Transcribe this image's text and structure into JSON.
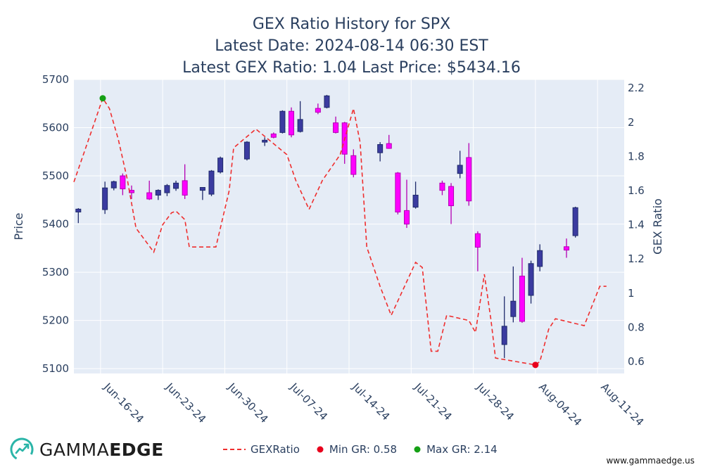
{
  "title": [
    "GEX Ratio History for SPX",
    "Latest Date: 2024-08-14 06:30 EST",
    "Latest GEX Ratio: 1.04 Last Price: $5434.16"
  ],
  "brand": {
    "name_light": "GAMMA",
    "name_bold": "EDGE",
    "url": "www.gammaedge.us"
  },
  "colors": {
    "plot_bg": "#e5ecf6",
    "grid": "#ffffff",
    "up": "#3b3ba0",
    "down": "#ff00ff",
    "line": "#ef2e2e",
    "min_marker": "#e8001c",
    "max_marker": "#15a015",
    "axis_text": "#2a3f5f"
  },
  "legend": {
    "line_label": "GEXRatio",
    "min_label": "Min GR: 0.58",
    "max_label": "Max GR: 2.14"
  },
  "chart_data": {
    "type": "candlestick+line",
    "title": "GEX Ratio History for SPX",
    "y_left": {
      "label": "Price",
      "range": [
        5090,
        5700
      ],
      "ticks": [
        5100,
        5200,
        5300,
        5400,
        5500,
        5600,
        5700
      ]
    },
    "y_right": {
      "label": "GEX Ratio",
      "range": [
        0.53,
        2.25
      ],
      "ticks": [
        "0.6",
        "0.8",
        "1",
        "1.2",
        "1.4",
        "1.6",
        "1.8",
        "2",
        "2.2"
      ]
    },
    "x_axis": {
      "range": [
        "2024-06-13",
        "2024-08-14"
      ],
      "ticks": [
        "2024-06-16",
        "2024-06-23",
        "2024-06-30",
        "2024-07-07",
        "2024-07-14",
        "2024-07-21",
        "2024-07-28",
        "2024-08-04",
        "2024-08-11"
      ],
      "tick_labels": [
        "Jun-16-24",
        "Jun-23-24",
        "Jun-30-24",
        "Jul-07-24",
        "Jul-14-24",
        "Jul-21-24",
        "Jul-28-24",
        "Aug-04-24",
        "Aug-11-24"
      ]
    },
    "grid": true,
    "legend_position": "bottom",
    "candles": [
      {
        "t": "2024-06-13 12:00",
        "o": 5425,
        "h": 5433,
        "l": 5402,
        "c": 5431
      },
      {
        "t": "2024-06-16 12:00",
        "o": 5430,
        "h": 5488,
        "l": 5421,
        "c": 5475
      },
      {
        "t": "2024-06-17 12:00",
        "o": 5475,
        "h": 5490,
        "l": 5470,
        "c": 5488
      },
      {
        "t": "2024-06-18 12:00",
        "o": 5500,
        "h": 5505,
        "l": 5460,
        "c": 5473
      },
      {
        "t": "2024-06-19 12:00",
        "o": 5470,
        "h": 5480,
        "l": 5452,
        "c": 5465
      },
      {
        "t": "2024-06-21 12:00",
        "o": 5465,
        "h": 5490,
        "l": 5450,
        "c": 5452
      },
      {
        "t": "2024-06-22 12:00",
        "o": 5460,
        "h": 5472,
        "l": 5450,
        "c": 5470
      },
      {
        "t": "2024-06-23 12:00",
        "o": 5465,
        "h": 5483,
        "l": 5458,
        "c": 5480
      },
      {
        "t": "2024-06-24 12:00",
        "o": 5474,
        "h": 5490,
        "l": 5469,
        "c": 5485
      },
      {
        "t": "2024-06-25 12:00",
        "o": 5490,
        "h": 5524,
        "l": 5452,
        "c": 5460
      },
      {
        "t": "2024-06-27 12:00",
        "o": 5470,
        "h": 5476,
        "l": 5450,
        "c": 5476
      },
      {
        "t": "2024-06-28 12:00",
        "o": 5462,
        "h": 5512,
        "l": 5458,
        "c": 5510
      },
      {
        "t": "2024-06-29 12:00",
        "o": 5508,
        "h": 5540,
        "l": 5505,
        "c": 5537
      },
      {
        "t": "2024-07-02 12:00",
        "o": 5535,
        "h": 5572,
        "l": 5532,
        "c": 5570
      },
      {
        "t": "2024-07-04 12:00",
        "o": 5570,
        "h": 5580,
        "l": 5562,
        "c": 5574
      },
      {
        "t": "2024-07-05 12:00",
        "o": 5587,
        "h": 5590,
        "l": 5578,
        "c": 5580
      },
      {
        "t": "2024-07-06 12:00",
        "o": 5590,
        "h": 5636,
        "l": 5588,
        "c": 5634
      },
      {
        "t": "2024-07-07 12:00",
        "o": 5634,
        "h": 5642,
        "l": 5580,
        "c": 5585
      },
      {
        "t": "2024-07-08 12:00",
        "o": 5592,
        "h": 5655,
        "l": 5590,
        "c": 5617
      },
      {
        "t": "2024-07-10 12:00",
        "o": 5640,
        "h": 5650,
        "l": 5628,
        "c": 5632
      },
      {
        "t": "2024-07-11 12:00",
        "o": 5642,
        "h": 5668,
        "l": 5640,
        "c": 5666
      },
      {
        "t": "2024-07-12 12:00",
        "o": 5610,
        "h": 5623,
        "l": 5588,
        "c": 5590
      },
      {
        "t": "2024-07-13 12:00",
        "o": 5610,
        "h": 5612,
        "l": 5525,
        "c": 5545
      },
      {
        "t": "2024-07-14 12:00",
        "o": 5542,
        "h": 5555,
        "l": 5497,
        "c": 5503
      },
      {
        "t": "2024-07-17 12:00",
        "o": 5548,
        "h": 5570,
        "l": 5530,
        "c": 5565
      },
      {
        "t": "2024-07-18 12:00",
        "o": 5567,
        "h": 5585,
        "l": 5556,
        "c": 5557
      },
      {
        "t": "2024-07-19 12:00",
        "o": 5506,
        "h": 5508,
        "l": 5420,
        "c": 5425
      },
      {
        "t": "2024-07-20 12:00",
        "o": 5428,
        "h": 5492,
        "l": 5392,
        "c": 5400
      },
      {
        "t": "2024-07-21 12:00",
        "o": 5435,
        "h": 5488,
        "l": 5432,
        "c": 5460
      },
      {
        "t": "2024-07-24 12:00",
        "o": 5485,
        "h": 5490,
        "l": 5460,
        "c": 5470
      },
      {
        "t": "2024-07-25 12:00",
        "o": 5478,
        "h": 5485,
        "l": 5400,
        "c": 5438
      },
      {
        "t": "2024-07-26 12:00",
        "o": 5505,
        "h": 5552,
        "l": 5495,
        "c": 5522
      },
      {
        "t": "2024-07-27 12:00",
        "o": 5538,
        "h": 5568,
        "l": 5438,
        "c": 5448
      },
      {
        "t": "2024-07-28 12:00",
        "o": 5380,
        "h": 5385,
        "l": 5302,
        "c": 5352
      },
      {
        "t": "2024-07-31 12:00",
        "o": 5150,
        "h": 5250,
        "l": 5122,
        "c": 5188
      },
      {
        "t": "2024-08-01 12:00",
        "o": 5208,
        "h": 5312,
        "l": 5196,
        "c": 5240
      },
      {
        "t": "2024-08-02 12:00",
        "o": 5292,
        "h": 5330,
        "l": 5195,
        "c": 5198
      },
      {
        "t": "2024-08-03 12:00",
        "o": 5252,
        "h": 5324,
        "l": 5235,
        "c": 5318
      },
      {
        "t": "2024-08-04 12:00",
        "o": 5312,
        "h": 5358,
        "l": 5302,
        "c": 5345
      },
      {
        "t": "2024-08-07 12:00",
        "o": 5353,
        "h": 5370,
        "l": 5330,
        "c": 5346
      },
      {
        "t": "2024-08-08 12:00",
        "o": 5376,
        "h": 5436,
        "l": 5372,
        "c": 5434
      }
    ],
    "gex_ratio": [
      {
        "t": "2024-06-13 00:00",
        "v": 1.65
      },
      {
        "t": "2024-06-15 00:00",
        "v": 1.95
      },
      {
        "t": "2024-06-16 06:00",
        "v": 2.14
      },
      {
        "t": "2024-06-17 00:00",
        "v": 2.08
      },
      {
        "t": "2024-06-18 00:00",
        "v": 1.9
      },
      {
        "t": "2024-06-19 00:00",
        "v": 1.67
      },
      {
        "t": "2024-06-20 00:00",
        "v": 1.38
      },
      {
        "t": "2024-06-21 00:00",
        "v": 1.31
      },
      {
        "t": "2024-06-22 00:00",
        "v": 1.24
      },
      {
        "t": "2024-06-23 00:00",
        "v": 1.4
      },
      {
        "t": "2024-06-24 00:00",
        "v": 1.47
      },
      {
        "t": "2024-06-24 12:00",
        "v": 1.48
      },
      {
        "t": "2024-06-25 12:00",
        "v": 1.43
      },
      {
        "t": "2024-06-26 00:00",
        "v": 1.27
      },
      {
        "t": "2024-06-29 00:00",
        "v": 1.27
      },
      {
        "t": "2024-06-30 12:00",
        "v": 1.6
      },
      {
        "t": "2024-07-01 00:00",
        "v": 1.85
      },
      {
        "t": "2024-07-03 12:00",
        "v": 1.96
      },
      {
        "t": "2024-07-07 00:00",
        "v": 1.81
      },
      {
        "t": "2024-07-08 00:00",
        "v": 1.66
      },
      {
        "t": "2024-07-09 12:00",
        "v": 1.49
      },
      {
        "t": "2024-07-11 00:00",
        "v": 1.66
      },
      {
        "t": "2024-07-13 00:00",
        "v": 1.81
      },
      {
        "t": "2024-07-14 12:00",
        "v": 2.08
      },
      {
        "t": "2024-07-15 06:00",
        "v": 1.88
      },
      {
        "t": "2024-07-16 00:00",
        "v": 1.27
      },
      {
        "t": "2024-07-17 12:00",
        "v": 1.04
      },
      {
        "t": "2024-07-18 18:00",
        "v": 0.87
      },
      {
        "t": "2024-07-21 12:00",
        "v": 1.18
      },
      {
        "t": "2024-07-22 06:00",
        "v": 1.15
      },
      {
        "t": "2024-07-23 06:00",
        "v": 0.66
      },
      {
        "t": "2024-07-24 00:00",
        "v": 0.66
      },
      {
        "t": "2024-07-25 00:00",
        "v": 0.87
      },
      {
        "t": "2024-07-27 12:00",
        "v": 0.84
      },
      {
        "t": "2024-07-28 06:00",
        "v": 0.77
      },
      {
        "t": "2024-07-29 06:00",
        "v": 1.11
      },
      {
        "t": "2024-07-30 00:00",
        "v": 0.84
      },
      {
        "t": "2024-07-30 12:00",
        "v": 0.62
      },
      {
        "t": "2024-08-04 00:00",
        "v": 0.58
      },
      {
        "t": "2024-08-04 12:00",
        "v": 0.6
      },
      {
        "t": "2024-08-05 12:00",
        "v": 0.79
      },
      {
        "t": "2024-08-06 06:00",
        "v": 0.85
      },
      {
        "t": "2024-08-09 12:00",
        "v": 0.81
      },
      {
        "t": "2024-08-11 06:00",
        "v": 1.04
      },
      {
        "t": "2024-08-12 00:00",
        "v": 1.04
      }
    ],
    "min_point": {
      "t": "2024-08-04 00:00",
      "v": 0.58
    },
    "max_point": {
      "t": "2024-06-16 06:00",
      "v": 2.14
    }
  }
}
